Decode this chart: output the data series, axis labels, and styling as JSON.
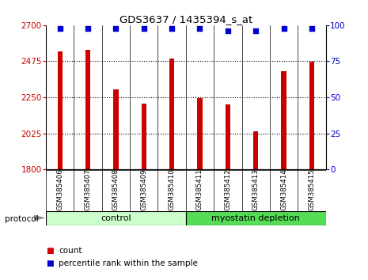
{
  "title": "GDS3637 / 1435394_s_at",
  "samples": [
    "GSM385406",
    "GSM385407",
    "GSM385408",
    "GSM385409",
    "GSM385410",
    "GSM385411",
    "GSM385412",
    "GSM385413",
    "GSM385414",
    "GSM385415"
  ],
  "counts": [
    2535,
    2545,
    2300,
    2210,
    2490,
    2245,
    2205,
    2040,
    2415,
    2470
  ],
  "percentile_ranks": [
    98,
    98,
    98,
    98,
    98,
    98,
    96,
    96,
    98,
    98
  ],
  "ylim_left": [
    1800,
    2700
  ],
  "ylim_right": [
    0,
    100
  ],
  "yticks_left": [
    1800,
    2025,
    2250,
    2475,
    2700
  ],
  "yticks_right": [
    0,
    25,
    50,
    75,
    100
  ],
  "groups": [
    {
      "label": "control",
      "indices": [
        0,
        1,
        2,
        3,
        4
      ],
      "color": "#ccffcc"
    },
    {
      "label": "myostatin depletion",
      "indices": [
        5,
        6,
        7,
        8,
        9
      ],
      "color": "#55dd55"
    }
  ],
  "protocol_label": "protocol",
  "bar_color": "#cc0000",
  "dot_color": "#0000cc",
  "bar_width": 0.18,
  "background_color": "#ffffff",
  "label_bg_color": "#cccccc",
  "grid_color": "#000000"
}
